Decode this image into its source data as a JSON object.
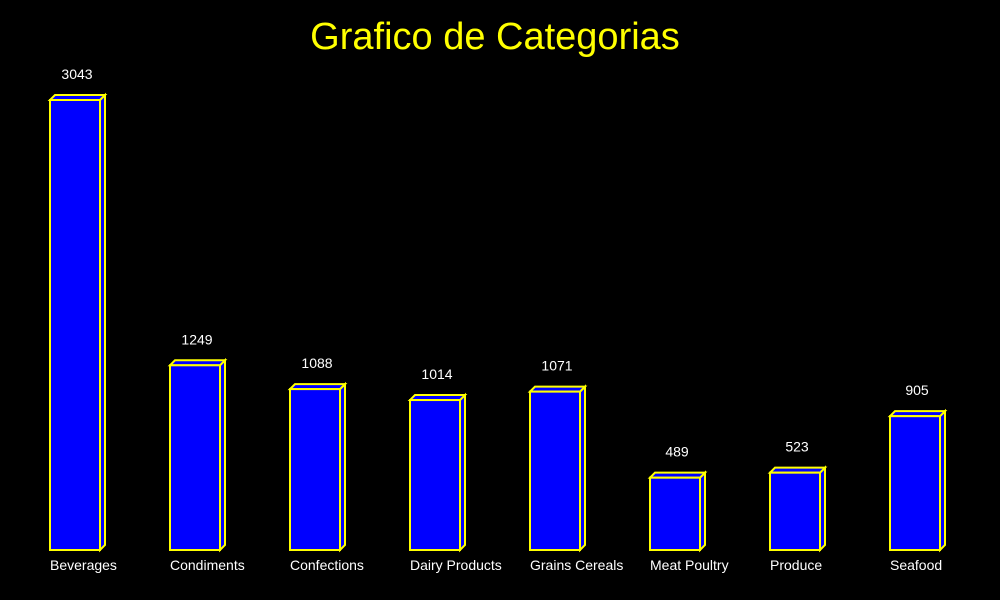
{
  "chart_data": {
    "type": "bar",
    "title": "Grafico de Categorias",
    "categories": [
      "Beverages",
      "Condiments",
      "Confections",
      "Dairy Products",
      "Grains Cereals",
      "Meat Poultry",
      "Produce",
      "Seafood"
    ],
    "values": [
      3043,
      1249,
      1088,
      1014,
      1071,
      489,
      523,
      905
    ],
    "xlabel": "",
    "ylabel": "",
    "ylim": [
      0,
      3043
    ],
    "grid": false,
    "legend": "none"
  },
  "colors": {
    "background": "#000000",
    "title": "#FFFF00",
    "bar_fill": "#0000FF",
    "bar_edge": "#FFFF00",
    "label_text": "#FFFFFF"
  }
}
